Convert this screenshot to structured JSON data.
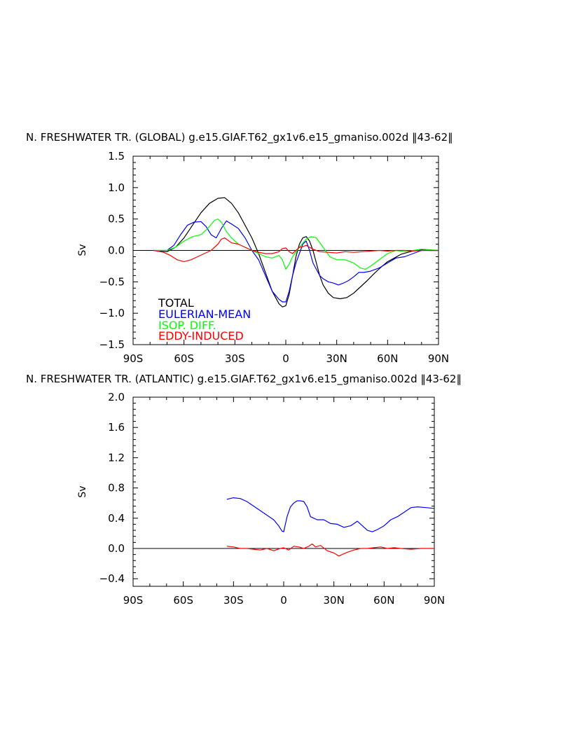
{
  "chart_data": [
    {
      "type": "line",
      "title": "N. FRESHWATER TR. (GLOBAL) g.e15.GIAF.T62_gx1v6.e15_gmaniso.002d ‖43-62‖",
      "xlabel": "",
      "ylabel": "Sv",
      "xlim": [
        -90,
        90
      ],
      "ylim": [
        -1.5,
        1.5
      ],
      "xticks": [
        -90,
        -60,
        -30,
        0,
        30,
        60,
        90
      ],
      "xtick_labels": [
        "90S",
        "60S",
        "30S",
        "0",
        "30N",
        "60N",
        "90N"
      ],
      "yticks": [
        -1.5,
        -1.0,
        -0.5,
        0.0,
        0.5,
        1.0,
        1.5
      ],
      "ytick_labels": [
        "−1.5",
        "−1.0",
        "−0.5",
        "0.0",
        "0.5",
        "1.0",
        "1.5"
      ],
      "zero_line": true,
      "legend": {
        "placement": "bottom-left",
        "entries": [
          "TOTAL",
          "EULERIAN-MEAN",
          "ISOP. DIFF.",
          "EDDY-INDUCED"
        ]
      },
      "series": [
        {
          "name": "TOTAL",
          "color": "#000000",
          "x": [
            -78,
            -70,
            -65,
            -60,
            -55,
            -50,
            -45,
            -40,
            -36,
            -32,
            -28,
            -24,
            -20,
            -16,
            -12,
            -8,
            -4,
            -2,
            0,
            2,
            4,
            6,
            8,
            10,
            12,
            14,
            16,
            18,
            20,
            22,
            25,
            28,
            32,
            36,
            40,
            44,
            48,
            52,
            56,
            60,
            64,
            68,
            72,
            76,
            80,
            85,
            90
          ],
          "y": [
            0.0,
            -0.02,
            0.05,
            0.2,
            0.4,
            0.6,
            0.75,
            0.83,
            0.84,
            0.75,
            0.6,
            0.4,
            0.2,
            -0.05,
            -0.35,
            -0.65,
            -0.85,
            -0.9,
            -0.88,
            -0.7,
            -0.4,
            -0.1,
            0.1,
            0.2,
            0.22,
            0.15,
            0.0,
            -0.2,
            -0.4,
            -0.55,
            -0.68,
            -0.75,
            -0.77,
            -0.75,
            -0.68,
            -0.58,
            -0.48,
            -0.37,
            -0.27,
            -0.18,
            -0.12,
            -0.06,
            -0.03,
            0.0,
            0.01,
            0.0,
            0.0
          ]
        },
        {
          "name": "EULERIAN-MEAN",
          "color": "#0000ff",
          "x": [
            -78,
            -70,
            -66,
            -62,
            -58,
            -54,
            -50,
            -47,
            -44,
            -41,
            -38,
            -35,
            -32,
            -28,
            -24,
            -20,
            -16,
            -12,
            -8,
            -4,
            -2,
            0,
            2,
            4,
            6,
            8,
            10,
            12,
            14,
            16,
            18,
            20,
            22,
            25,
            28,
            31,
            34,
            37,
            40,
            43,
            46,
            50,
            55,
            60,
            65,
            70,
            75,
            80,
            85,
            90
          ],
          "y": [
            0.0,
            0.0,
            0.08,
            0.25,
            0.4,
            0.45,
            0.46,
            0.38,
            0.25,
            0.2,
            0.35,
            0.47,
            0.42,
            0.35,
            0.2,
            0.0,
            -0.15,
            -0.4,
            -0.65,
            -0.78,
            -0.82,
            -0.82,
            -0.65,
            -0.4,
            -0.2,
            -0.05,
            0.1,
            0.15,
            0.0,
            -0.2,
            -0.3,
            -0.4,
            -0.45,
            -0.5,
            -0.52,
            -0.55,
            -0.52,
            -0.48,
            -0.42,
            -0.35,
            -0.35,
            -0.33,
            -0.28,
            -0.2,
            -0.12,
            -0.1,
            -0.05,
            0.0,
            0.0,
            0.0
          ]
        },
        {
          "name": "ISOP. DIFF.",
          "color": "#00ff00",
          "x": [
            -78,
            -70,
            -65,
            -60,
            -55,
            -50,
            -46,
            -42,
            -40,
            -38,
            -35,
            -32,
            -28,
            -24,
            -20,
            -16,
            -12,
            -8,
            -4,
            -2,
            0,
            2,
            4,
            8,
            12,
            15,
            18,
            22,
            26,
            30,
            35,
            40,
            44,
            47,
            50,
            55,
            60,
            65,
            70,
            75,
            80,
            85,
            90
          ],
          "y": [
            0.0,
            0.0,
            0.05,
            0.15,
            0.22,
            0.25,
            0.35,
            0.48,
            0.5,
            0.45,
            0.3,
            0.2,
            0.1,
            0.05,
            0.0,
            -0.05,
            -0.1,
            -0.12,
            -0.08,
            -0.15,
            -0.3,
            -0.22,
            -0.1,
            0.05,
            0.18,
            0.22,
            0.2,
            0.05,
            -0.1,
            -0.15,
            -0.15,
            -0.2,
            -0.28,
            -0.3,
            -0.25,
            -0.15,
            -0.05,
            0.0,
            -0.02,
            0.0,
            0.02,
            0.01,
            0.0
          ]
        },
        {
          "name": "EDDY-INDUCED",
          "color": "#ff0000",
          "x": [
            -78,
            -72,
            -68,
            -64,
            -60,
            -56,
            -52,
            -48,
            -44,
            -40,
            -38,
            -36,
            -32,
            -28,
            -24,
            -20,
            -16,
            -12,
            -8,
            -4,
            -2,
            0,
            2,
            4,
            6,
            8,
            10,
            12,
            14,
            16,
            20,
            25,
            30,
            35,
            40,
            45,
            50,
            55,
            60,
            65,
            70,
            75,
            80,
            85,
            90
          ],
          "y": [
            0.0,
            -0.03,
            -0.08,
            -0.15,
            -0.18,
            -0.15,
            -0.1,
            -0.05,
            0.0,
            0.1,
            0.18,
            0.2,
            0.12,
            0.1,
            0.05,
            0.0,
            -0.03,
            -0.05,
            -0.05,
            -0.02,
            0.03,
            0.04,
            -0.02,
            -0.05,
            0.0,
            0.05,
            0.06,
            0.08,
            0.05,
            0.02,
            -0.02,
            -0.03,
            -0.04,
            -0.02,
            -0.03,
            -0.02,
            -0.01,
            0.0,
            -0.01,
            0.0,
            0.0,
            -0.01,
            0.0,
            0.0,
            0.0
          ]
        }
      ]
    },
    {
      "type": "line",
      "title": "N. FRESHWATER TR. (ATLANTIC) g.e15.GIAF.T62_gx1v6.e15_gmaniso.002d ‖43-62‖",
      "xlabel": "",
      "ylabel": "Sv",
      "xlim": [
        -90,
        90
      ],
      "ylim": [
        -0.5,
        2.0
      ],
      "xticks": [
        -90,
        -60,
        -30,
        0,
        30,
        60,
        90
      ],
      "xtick_labels": [
        "90S",
        "60S",
        "30S",
        "0",
        "30N",
        "60N",
        "90N"
      ],
      "yticks": [
        -0.4,
        0.0,
        0.4,
        0.8,
        1.2,
        1.6,
        2.0
      ],
      "ytick_labels": [
        "−0.4",
        "0.0",
        "0.4",
        "0.8",
        "1.2",
        "1.6",
        "2.0"
      ],
      "zero_line": true,
      "series": [
        {
          "name": "EULERIAN-MEAN",
          "color": "#0000ff",
          "x": [
            -34,
            -30,
            -26,
            -22,
            -18,
            -14,
            -10,
            -6,
            -3,
            -1,
            0,
            2,
            4,
            6,
            8,
            10,
            12,
            14,
            16,
            18,
            20,
            24,
            28,
            32,
            36,
            40,
            44,
            47,
            50,
            53,
            56,
            60,
            64,
            68,
            72,
            76,
            80,
            85,
            90
          ],
          "y": [
            0.65,
            0.67,
            0.66,
            0.62,
            0.56,
            0.5,
            0.44,
            0.38,
            0.3,
            0.23,
            0.22,
            0.42,
            0.55,
            0.6,
            0.63,
            0.63,
            0.62,
            0.55,
            0.42,
            0.4,
            0.38,
            0.38,
            0.33,
            0.32,
            0.28,
            0.3,
            0.36,
            0.3,
            0.24,
            0.22,
            0.25,
            0.3,
            0.38,
            0.42,
            0.48,
            0.54,
            0.55,
            0.54,
            0.53
          ]
        },
        {
          "name": "EDDY-INDUCED",
          "color": "#ff0000",
          "x": [
            -34,
            -30,
            -26,
            -22,
            -18,
            -14,
            -10,
            -6,
            -2,
            0,
            3,
            6,
            9,
            12,
            15,
            17,
            19,
            22,
            26,
            30,
            33,
            35,
            38,
            42,
            46,
            50,
            54,
            58,
            62,
            66,
            70,
            76,
            82,
            90
          ],
          "y": [
            0.03,
            0.02,
            0.0,
            0.0,
            -0.01,
            -0.02,
            0.0,
            -0.03,
            0.0,
            0.01,
            -0.02,
            0.03,
            0.02,
            0.0,
            0.03,
            0.06,
            0.02,
            0.04,
            -0.03,
            -0.06,
            -0.1,
            -0.08,
            -0.05,
            -0.02,
            0.0,
            0.0,
            0.01,
            0.02,
            0.0,
            0.01,
            0.0,
            -0.01,
            0.0,
            0.0
          ]
        }
      ]
    }
  ]
}
